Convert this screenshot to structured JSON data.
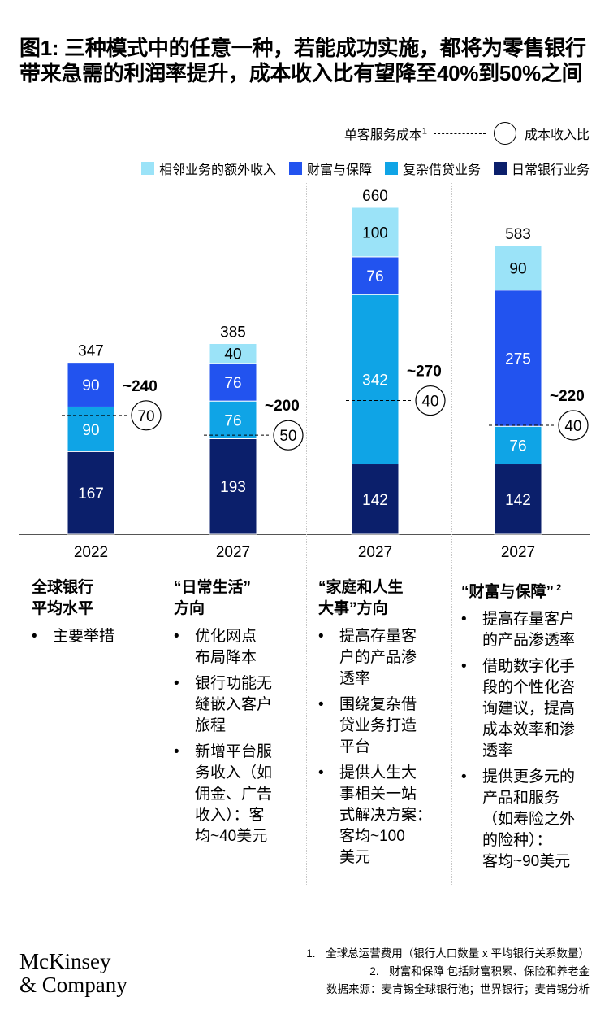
{
  "title": "图1: 三种模式中的任意一种，若能成功实施，都将为零售银行带来急需的利润率提升，成本收入比有望降至40%到50%之间",
  "legend_top": {
    "cost_label": "单客服务成本",
    "cost_sup": "1",
    "ratio_label": "成本收入比"
  },
  "colors": {
    "daily_banking": "#0b1f6b",
    "complex_lending": "#0fa4e6",
    "wealth_protection": "#2253ef",
    "adjacent_income": "#9be3f8"
  },
  "chart_data": {
    "type": "bar",
    "stacked": true,
    "categories": [
      "2022",
      "2027",
      "2027",
      "2027"
    ],
    "series": [
      {
        "name": "日常银行业务",
        "color_key": "daily_banking",
        "values": [
          167,
          193,
          142,
          142
        ]
      },
      {
        "name": "复杂借贷业务",
        "color_key": "complex_lending",
        "values": [
          90,
          76,
          342,
          76
        ]
      },
      {
        "name": "财富与保障",
        "color_key": "wealth_protection",
        "values": [
          90,
          76,
          76,
          275
        ]
      },
      {
        "name": "相邻业务的额外收入",
        "color_key": "adjacent_income",
        "values": [
          0,
          40,
          100,
          90
        ]
      }
    ],
    "totals": [
      347,
      385,
      660,
      583
    ],
    "cost_per_customer": [
      240,
      200,
      270,
      220
    ],
    "cost_per_customer_labels": [
      "~240",
      "~200",
      "~270",
      "~220"
    ],
    "cost_income_ratio": [
      70,
      50,
      40,
      40
    ],
    "legend_order": [
      "相邻业务的额外收入",
      "财富与保障",
      "复杂借贷业务",
      "日常银行业务"
    ],
    "ylim": [
      0,
      660
    ],
    "grid": false
  },
  "columns": [
    {
      "heading": [
        "全球银行",
        "平均水平"
      ],
      "bullets": [
        "主要举措"
      ]
    },
    {
      "heading": [
        "“日常生活”",
        "方向"
      ],
      "bullets": [
        [
          "优化网点",
          "布局降本"
        ],
        [
          "银行功能无",
          "缝嵌入客户",
          "旅程"
        ],
        [
          "新增平台服",
          "务收入（如",
          "佣金、广告",
          "收入）：客",
          "均~40美元"
        ]
      ]
    },
    {
      "heading": [
        "“家庭和人生",
        "大事”方向"
      ],
      "bullets": [
        [
          "提高存量客",
          "户的产品渗",
          "透率"
        ],
        [
          "围绕复杂借",
          "贷业务打造",
          "平台"
        ],
        [
          "提供人生大",
          "事相关一站",
          "式解决方案：",
          "客均~100",
          "美元"
        ]
      ]
    },
    {
      "heading": [
        "“财富与保障”"
      ],
      "heading_sup": "2",
      "bullets": [
        [
          "提高存量客户",
          "的产品渗透率"
        ],
        [
          "借助数字化手",
          "段的个性化咨",
          "询建议，提高",
          "成本效率和渗",
          "透率"
        ],
        [
          "提供更多元的",
          "产品和服务",
          "（如寿险之外",
          "的险种）：",
          "客均~90美元"
        ]
      ]
    }
  ],
  "footnotes": {
    "note1_num": "1.",
    "note1": "全球总运营费用（银行人口数量 x 平均银行关系数量）",
    "note2_num": "2.",
    "note2": "财富和保障 包括财富积累、保险和养老金",
    "source": "数据来源：麦肯锡全球银行池；世界银行；麦肯锡分析"
  },
  "logo": [
    "McKinsey",
    "& Company"
  ]
}
